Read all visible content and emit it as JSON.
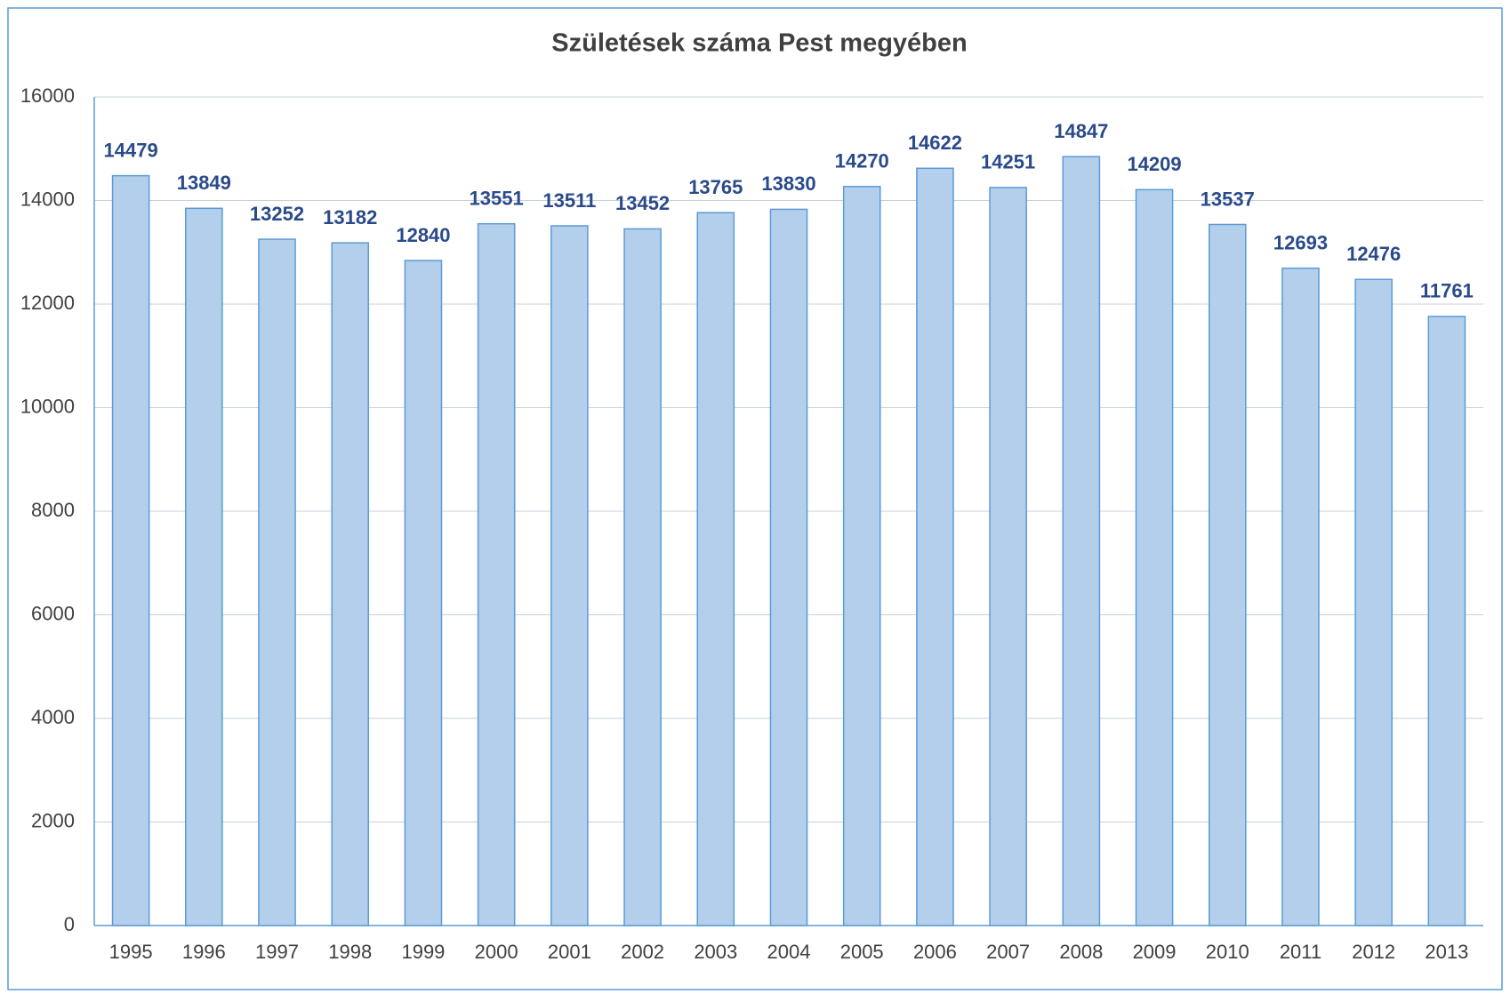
{
  "chart_data": {
    "type": "bar",
    "title": "Születések száma Pest megyében",
    "categories": [
      "1995",
      "1996",
      "1997",
      "1998",
      "1999",
      "2000",
      "2001",
      "2002",
      "2003",
      "2004",
      "2005",
      "2006",
      "2007",
      "2008",
      "2009",
      "2010",
      "2011",
      "2012",
      "2013"
    ],
    "values": [
      14479,
      13849,
      13252,
      13182,
      12840,
      13551,
      13511,
      13452,
      13765,
      13830,
      14270,
      14622,
      14251,
      14847,
      14209,
      13537,
      12693,
      12476,
      11761
    ],
    "color": "#b3cfec",
    "edge_color": "#5b9bd5",
    "ylim": [
      0,
      16000
    ],
    "yticks": [
      0,
      2000,
      4000,
      6000,
      8000,
      10000,
      12000,
      14000,
      16000
    ],
    "grid": true,
    "data_labels": true
  }
}
